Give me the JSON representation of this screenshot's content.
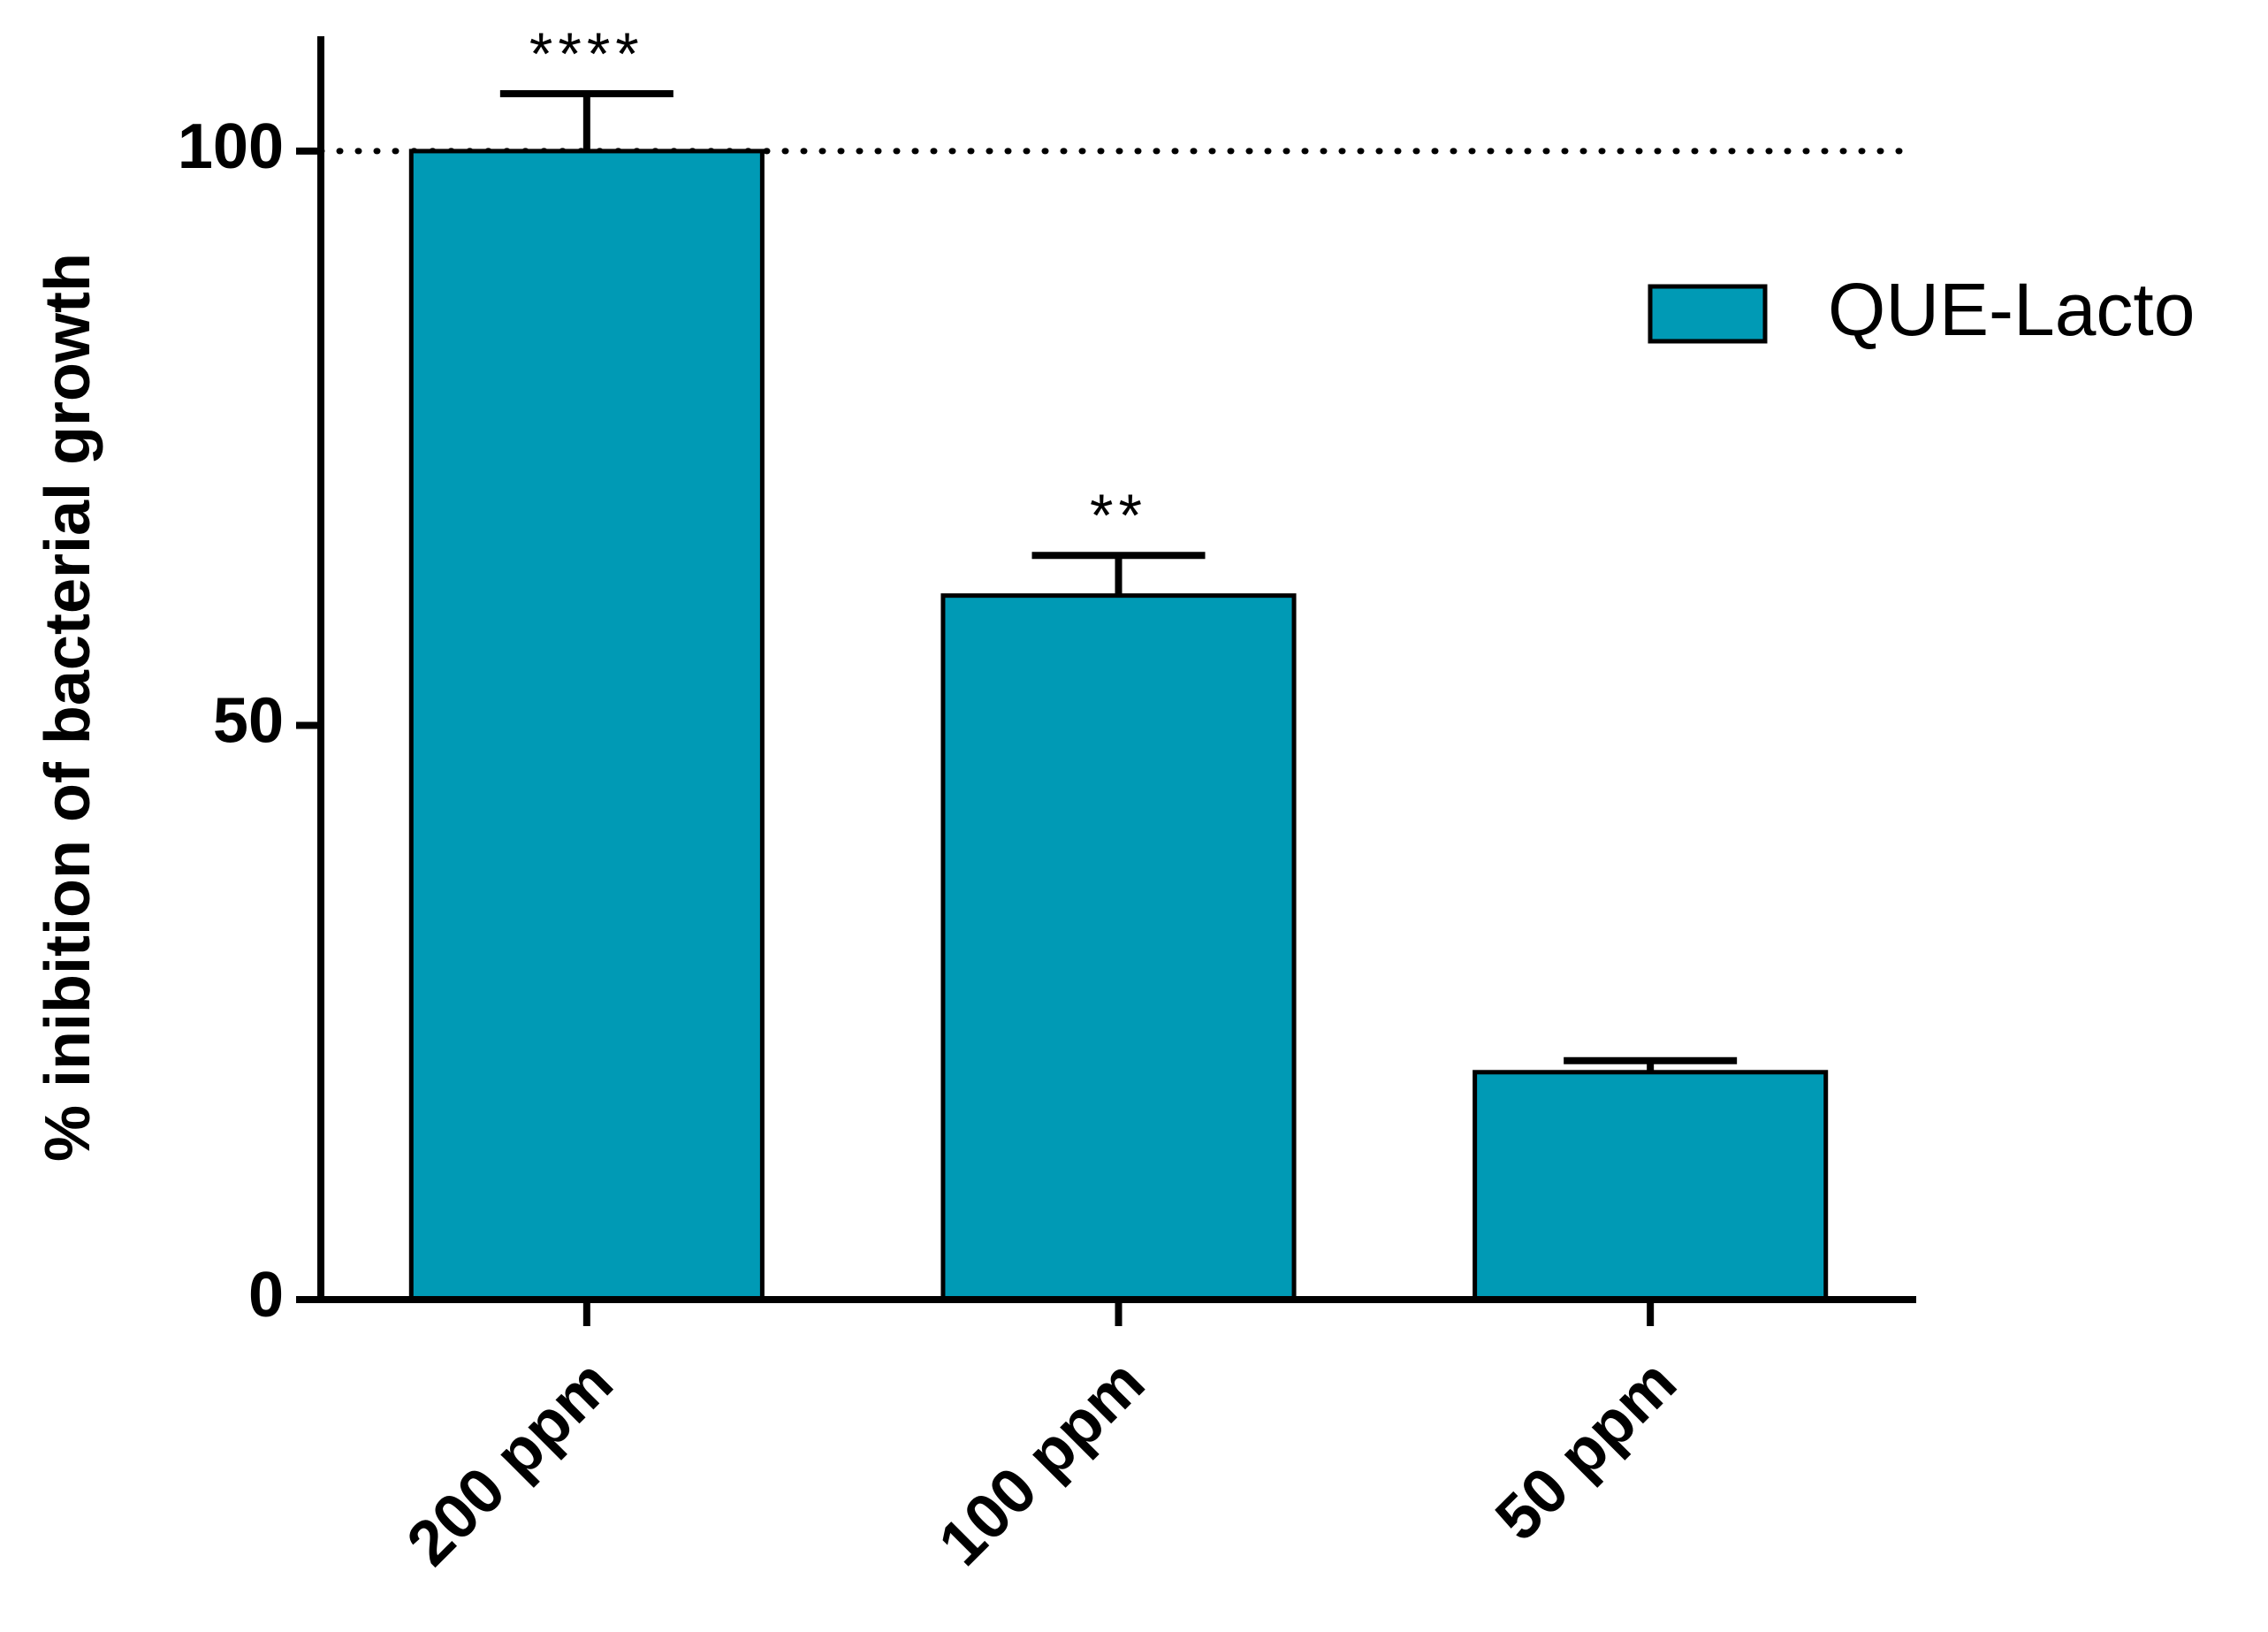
{
  "chart_data": {
    "type": "bar",
    "y_label": "% inibition of bacterial growth",
    "categories": [
      "200 ppm",
      "100 ppm",
      "50 ppm"
    ],
    "series": [
      {
        "name": "QUE-Lacto",
        "color": "#009ab5",
        "values": [
          100,
          61.3,
          19.8
        ],
        "errors": [
          5,
          3.5,
          1
        ]
      }
    ],
    "annotations": [
      "****",
      "**",
      null
    ],
    "reference_line": 100,
    "ylim": [
      0,
      110
    ],
    "yticks": [
      0,
      50,
      100
    ],
    "legend": "upper right"
  }
}
